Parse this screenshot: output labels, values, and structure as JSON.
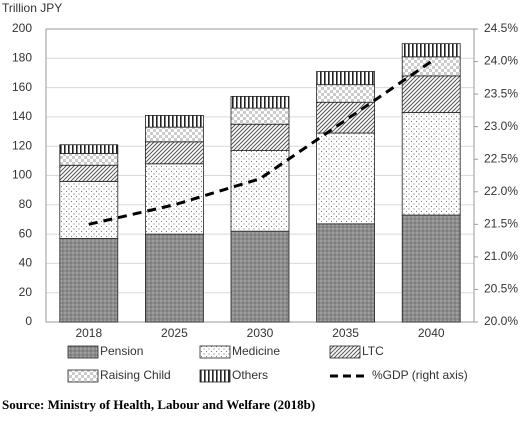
{
  "chart_data": {
    "type": "bar",
    "stacked": true,
    "y_label": "Trillion JPY",
    "source": "Source: Ministry of Health, Labour and Welfare (2018b)",
    "categories": [
      "2018",
      "2025",
      "2030",
      "2035",
      "2040"
    ],
    "ylim": [
      0,
      200
    ],
    "yticks": [
      0,
      20,
      40,
      60,
      80,
      100,
      120,
      140,
      160,
      180,
      200
    ],
    "y2lim": [
      20,
      24.5
    ],
    "y2ticks": [
      {
        "value": 20,
        "label": "20.0%"
      },
      {
        "value": 20.5,
        "label": "20.5%"
      },
      {
        "value": 21,
        "label": "21.0%"
      },
      {
        "value": 21.5,
        "label": "21.5%"
      },
      {
        "value": 22,
        "label": "22.0%"
      },
      {
        "value": 22.5,
        "label": "22.5%"
      },
      {
        "value": 23,
        "label": "23.0%"
      },
      {
        "value": 23.5,
        "label": "23.5%"
      },
      {
        "value": 24,
        "label": "24.0%"
      },
      {
        "value": 24.5,
        "label": "24.5%"
      }
    ],
    "grid": true,
    "series": [
      {
        "name": "Pension",
        "pattern": "dark-dots",
        "color": "#8c8c8c",
        "values": [
          57,
          60,
          62,
          67,
          73
        ]
      },
      {
        "name": "Medicine",
        "pattern": "light-dots",
        "color": "#ffffff",
        "values": [
          39,
          48,
          55,
          62,
          70
        ]
      },
      {
        "name": "LTC",
        "pattern": "diagonal",
        "color": "#ffffff",
        "values": [
          11,
          15,
          18,
          21,
          25
        ]
      },
      {
        "name": "Raising Child",
        "pattern": "checker",
        "color": "#ffffff",
        "values": [
          8,
          10,
          11,
          12,
          13
        ]
      },
      {
        "name": "Others",
        "pattern": "vertical",
        "color": "#ffffff",
        "values": [
          6,
          8,
          8,
          9,
          9
        ]
      },
      {
        "name": "%GDP (right axis)",
        "type": "line",
        "axis": "y2",
        "color": "#000000",
        "values": [
          21.5,
          21.8,
          22.2,
          23.1,
          24.0
        ]
      }
    ]
  }
}
